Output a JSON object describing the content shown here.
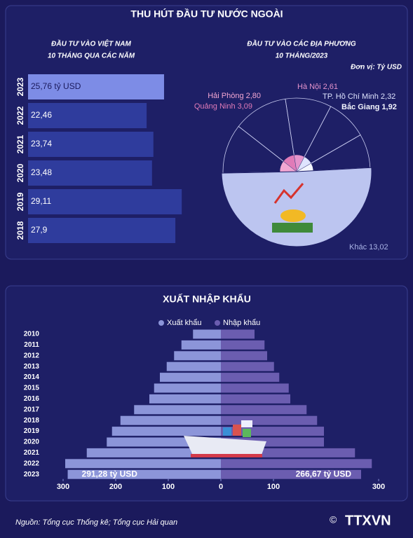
{
  "header": {
    "title": "THU HÚT ĐẦU TƯ NƯỚC NGOÀI"
  },
  "chart_data": [
    {
      "type": "bar",
      "orientation": "horizontal",
      "title": "ĐẦU TƯ VÀO VIỆT NAM",
      "subtitle": "10 THÁNG QUA CÁC NĂM",
      "categories": [
        "2023",
        "2022",
        "2021",
        "2020",
        "2019",
        "2018"
      ],
      "values": [
        25.76,
        22.46,
        23.74,
        23.48,
        29.11,
        27.9
      ],
      "value_labels": [
        "25,76 tỷ USD",
        "22,46",
        "23,74",
        "23,48",
        "29,11",
        "27,9"
      ],
      "colors": [
        "#7d8ce6",
        "#2f3c9d",
        "#2f3c9d",
        "#2f3c9d",
        "#2f3c9d",
        "#2f3c9d"
      ]
    },
    {
      "type": "pie",
      "title": "ĐẦU TƯ VÀO CÁC ĐỊA PHƯƠNG",
      "subtitle": "10 THÁNG/2023",
      "unit": "Đơn vị: Tỷ USD",
      "categories": [
        "Hải Phòng",
        "Quảng Ninh",
        "Hà Nội",
        "TP. Hồ Chí Minh",
        "Bắc Giang",
        "Khác"
      ],
      "values": [
        2.8,
        3.09,
        2.61,
        2.32,
        1.92,
        13.02
      ],
      "value_labels": [
        "2,80",
        "3,09",
        "2,61",
        "2,32",
        "1,92",
        "13,02"
      ],
      "colors": [
        "#f2a6d2",
        "#e07bb8",
        "#e594cc",
        "#dfe4ff",
        "#f4f6ff",
        "#bcc5f0"
      ]
    },
    {
      "type": "butterfly",
      "title": "XUẤT NHẬP KHẨU",
      "categories": [
        "2010",
        "2011",
        "2012",
        "2013",
        "2014",
        "2015",
        "2016",
        "2017",
        "2018",
        "2019",
        "2020",
        "2021",
        "2022",
        "2023"
      ],
      "series": [
        {
          "name": "Xuất khẩu",
          "color": "#8c95d9",
          "values": [
            53,
            75,
            89,
            103,
            116,
            127,
            136,
            165,
            191,
            207,
            217,
            255,
            296,
            291.28
          ],
          "value_labels": [
            null,
            null,
            null,
            null,
            null,
            null,
            null,
            null,
            null,
            null,
            null,
            null,
            null,
            "291,28 tỷ USD"
          ]
        },
        {
          "name": "Nhập khẩu",
          "color": "#6b5db0",
          "values": [
            64,
            83,
            88,
            101,
            111,
            129,
            132,
            163,
            183,
            196,
            196,
            255,
            287,
            266.67
          ],
          "value_labels": [
            null,
            null,
            null,
            null,
            null,
            null,
            null,
            null,
            null,
            null,
            null,
            null,
            null,
            "266,67 tỷ USD"
          ]
        }
      ],
      "xlim": [
        -300,
        300
      ],
      "xticks": [
        {
          "value": -300,
          "label": "300"
        },
        {
          "value": -200,
          "label": "200"
        },
        {
          "value": -100,
          "label": "100"
        },
        0,
        100,
        300
      ]
    }
  ],
  "footer": {
    "source": "Nguồn: Tổng cục Thống kê; Tổng cục Hải quan",
    "logo": "TTXVN"
  }
}
